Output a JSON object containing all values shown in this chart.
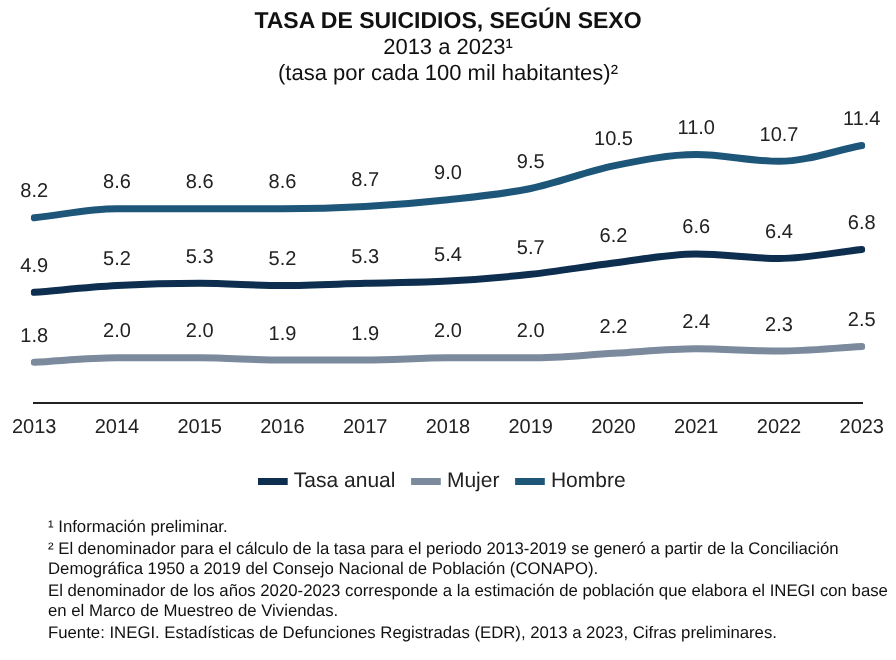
{
  "chart_data": {
    "type": "line",
    "title": "TASA DE SUICIDIOS, SEGÚN SEXO",
    "subtitle": "2013 a 2023¹\n(tasa por cada 100 mil habitantes)²",
    "categories": [
      "2013",
      "2014",
      "2015",
      "2016",
      "2017",
      "2018",
      "2019",
      "2020",
      "2021",
      "2022",
      "2023"
    ],
    "series": [
      {
        "name": "Tasa anual",
        "color": "#0d2e4e",
        "values": [
          4.9,
          5.2,
          5.3,
          5.2,
          5.3,
          5.4,
          5.7,
          6.2,
          6.6,
          6.4,
          6.8
        ],
        "value_labels": [
          "4.9",
          "5.2",
          "5.3",
          "5.2",
          "5.3",
          "5.4",
          "5.7",
          "6.2",
          "6.6",
          "6.4",
          "6.8"
        ]
      },
      {
        "name": "Mujer",
        "color": "#7b8a9c",
        "values": [
          1.8,
          2.0,
          2.0,
          1.9,
          1.9,
          2.0,
          2.0,
          2.2,
          2.4,
          2.3,
          2.5
        ],
        "value_labels": [
          "1.8",
          "2.0",
          "2.0",
          "1.9",
          "1.9",
          "2.0",
          "2.0",
          "2.2",
          "2.4",
          "2.3",
          "2.5"
        ]
      },
      {
        "name": "Hombre",
        "color": "#1d5679",
        "values": [
          8.2,
          8.6,
          8.6,
          8.6,
          8.7,
          9.0,
          9.5,
          10.5,
          11.0,
          10.7,
          11.4
        ],
        "value_labels": [
          "8.2",
          "8.6",
          "8.6",
          "8.6",
          "8.7",
          "9.0",
          "9.5",
          "10.5",
          "11.0",
          "10.7",
          "11.4"
        ]
      }
    ],
    "grid": false,
    "legend": "bottom",
    "marker": "none",
    "line_style": "solid",
    "annotations": [
      "¹ Información preliminar.",
      "² El denominador para el cálculo de la tasa para el periodo 2013-2019 se generó a partir de la Conciliación Demográfica 1950 a 2019 del Consejo Nacional de Población (CONAPO).",
      "El denominador de los años 2020-2023 corresponde a la estimación de población que elabora el INEGI con base en el Marco de Muestreo de Viviendas.",
      "Fuente: INEGI. Estadísticas de Defunciones Registradas (EDR), 2013 a 2023, Cifras preliminares."
    ]
  }
}
